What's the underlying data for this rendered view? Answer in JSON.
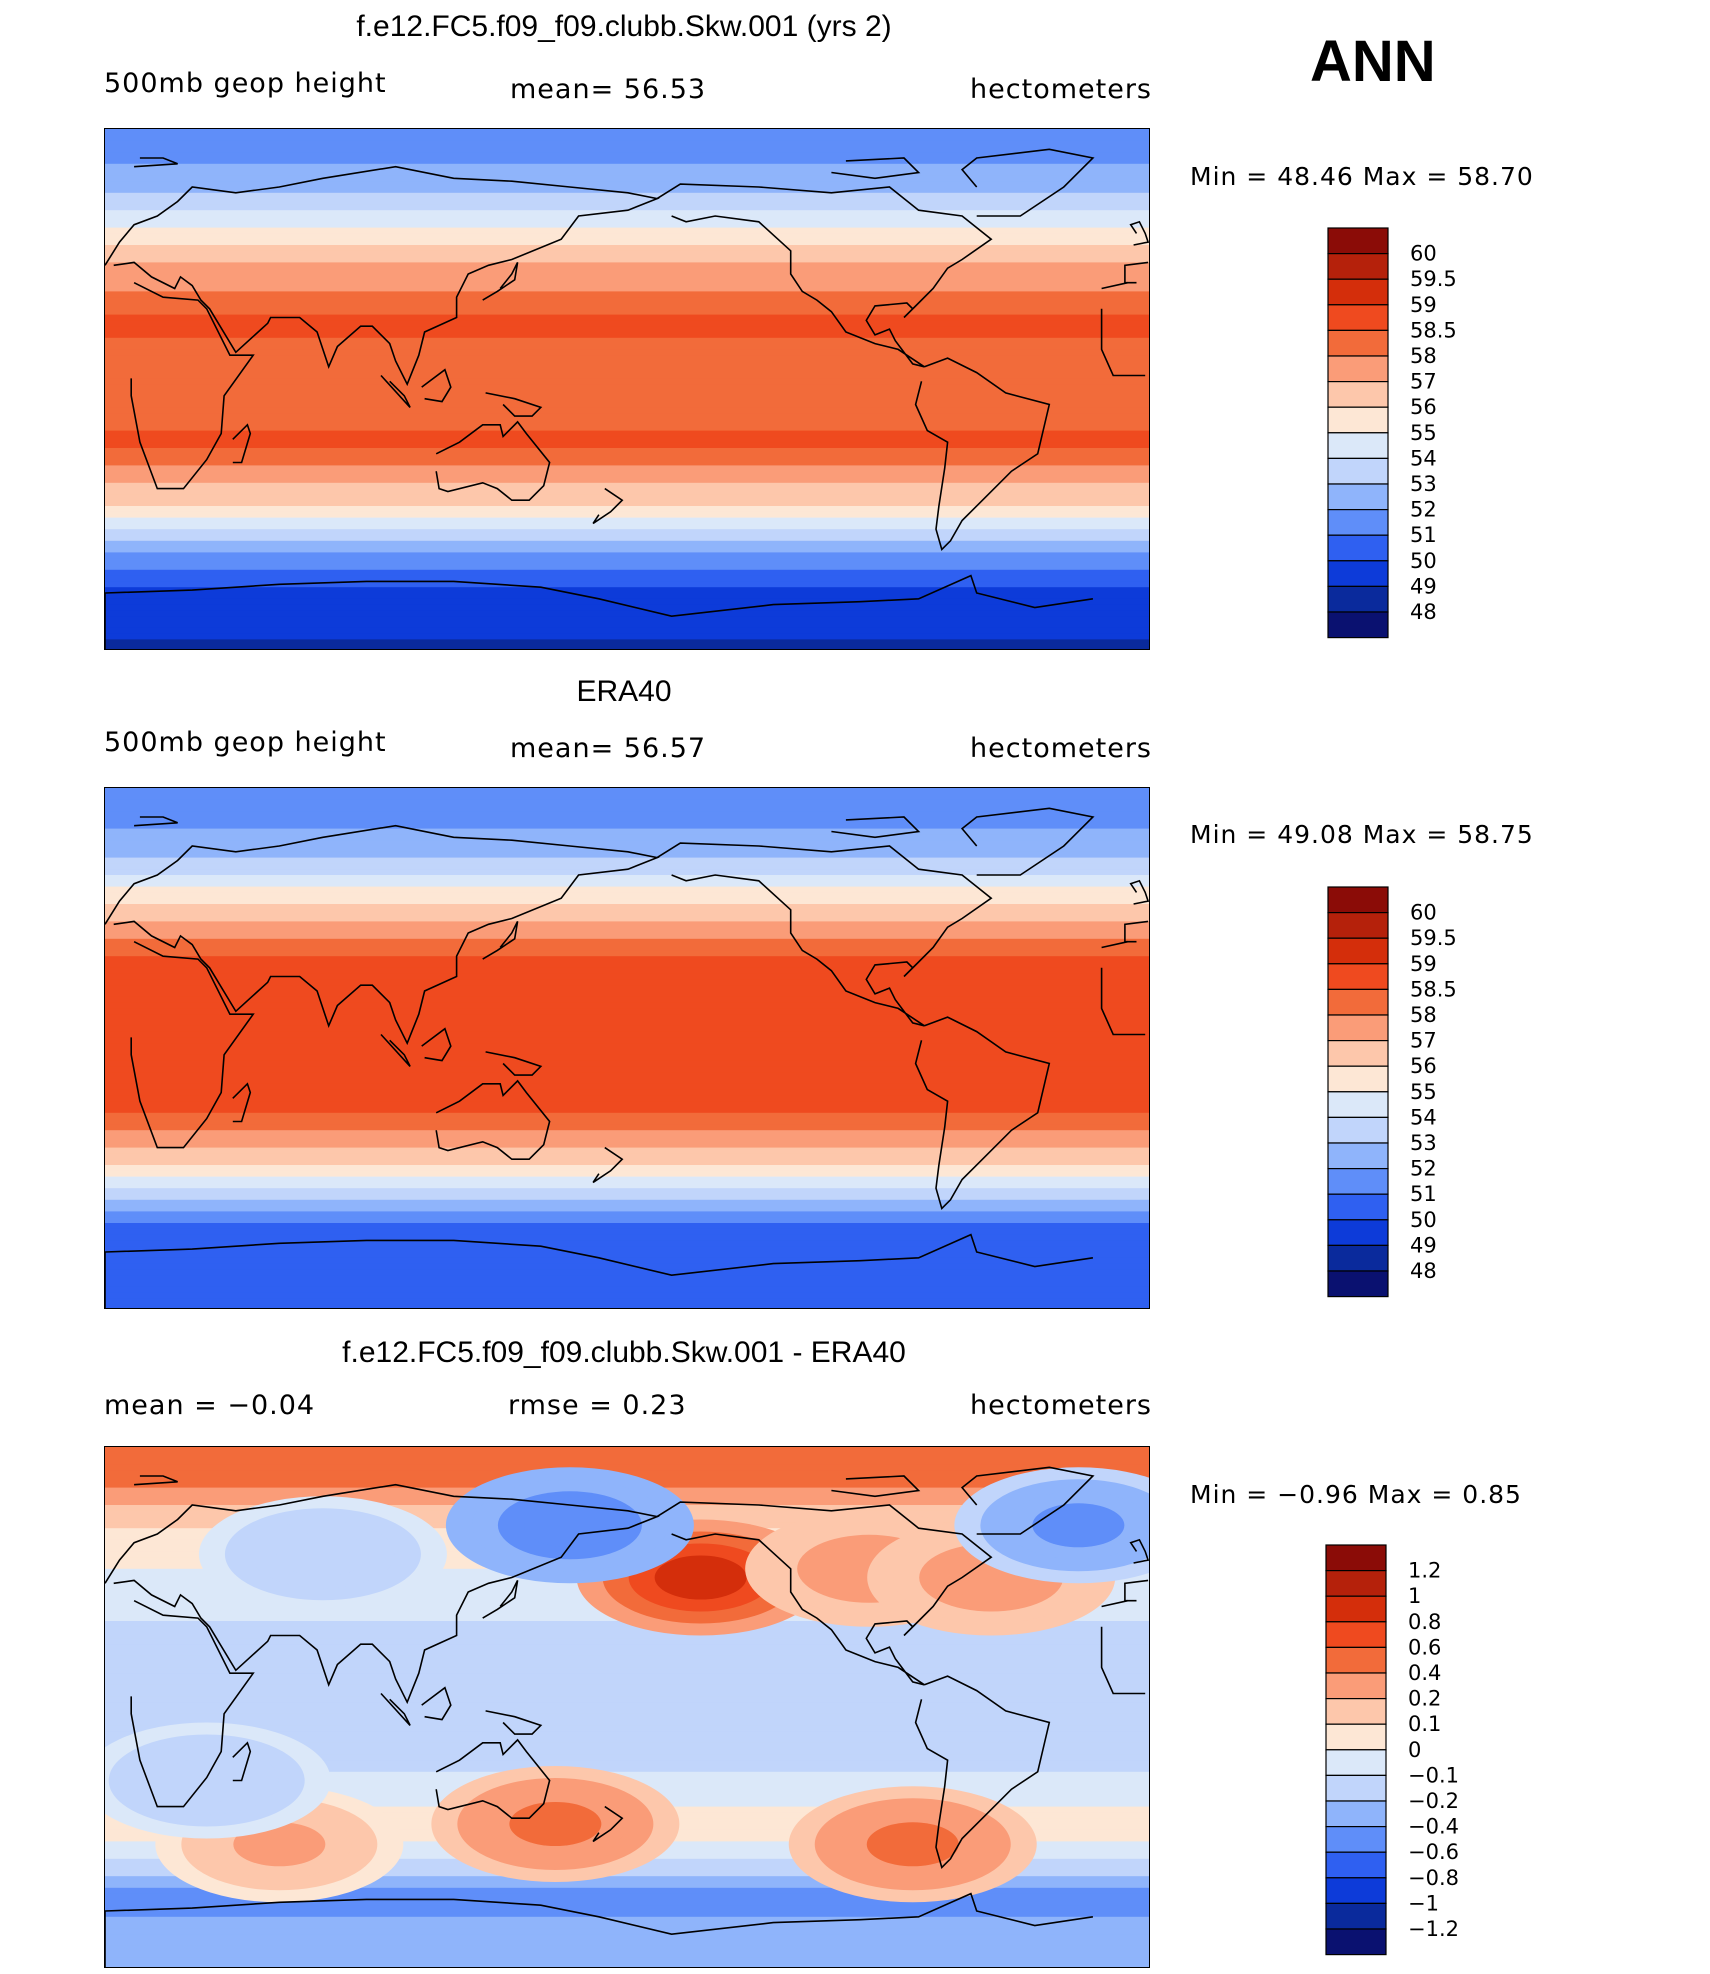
{
  "season": "ANN",
  "panels": [
    {
      "title": "f.e12.FC5.f09_f09.clubb.Skw.001 (yrs 2)",
      "left_label": "500mb geop height",
      "center_label": "mean=  56.53",
      "units": "hectometers",
      "minmax": "Min =   48.46  Max =   58.70",
      "levels": [
        "60",
        "59.5",
        "59",
        "58.5",
        "58",
        "57",
        "56",
        "55",
        "54",
        "53",
        "52",
        "51",
        "50",
        "49",
        "48"
      ],
      "bands": [
        {
          "lat": 90,
          "value": 51.2
        },
        {
          "lat": 80,
          "value": 51.8
        },
        {
          "lat": 70,
          "value": 52.6
        },
        {
          "lat": 60,
          "value": 54.3
        },
        {
          "lat": 52,
          "value": 55.6
        },
        {
          "lat": 42,
          "value": 57.2
        },
        {
          "lat": 32,
          "value": 58.3
        },
        {
          "lat": 22,
          "value": 58.6
        },
        {
          "lat": 10,
          "value": 58.2
        },
        {
          "lat": 0,
          "value": 58.2
        },
        {
          "lat": -10,
          "value": 58.4
        },
        {
          "lat": -20,
          "value": 58.6
        },
        {
          "lat": -30,
          "value": 57.4
        },
        {
          "lat": -38,
          "value": 56.3
        },
        {
          "lat": -45,
          "value": 54.8
        },
        {
          "lat": -52,
          "value": 53.2
        },
        {
          "lat": -58,
          "value": 51.6
        },
        {
          "lat": -64,
          "value": 50.4
        },
        {
          "lat": -72,
          "value": 49.6
        },
        {
          "lat": -82,
          "value": 49.2
        },
        {
          "lat": -90,
          "value": 48.8
        }
      ]
    },
    {
      "title": "ERA40",
      "left_label": "500mb geop height",
      "center_label": "mean=  56.57",
      "units": "hectometers",
      "minmax": "Min =   49.08  Max =   58.75",
      "levels": [
        "60",
        "59.5",
        "59",
        "58.5",
        "58",
        "57",
        "56",
        "55",
        "54",
        "53",
        "52",
        "51",
        "50",
        "49",
        "48"
      ],
      "bands": [
        {
          "lat": 90,
          "value": 51.1
        },
        {
          "lat": 80,
          "value": 51.6
        },
        {
          "lat": 70,
          "value": 52.4
        },
        {
          "lat": 60,
          "value": 54.0
        },
        {
          "lat": 52,
          "value": 55.6
        },
        {
          "lat": 42,
          "value": 57.4
        },
        {
          "lat": 32,
          "value": 58.6
        },
        {
          "lat": 20,
          "value": 58.7
        },
        {
          "lat": 0,
          "value": 58.7
        },
        {
          "lat": -20,
          "value": 58.7
        },
        {
          "lat": -30,
          "value": 57.8
        },
        {
          "lat": -38,
          "value": 56.4
        },
        {
          "lat": -45,
          "value": 54.6
        },
        {
          "lat": -52,
          "value": 52.8
        },
        {
          "lat": -58,
          "value": 51.2
        },
        {
          "lat": -65,
          "value": 50.1
        },
        {
          "lat": -75,
          "value": 50.0
        },
        {
          "lat": -90,
          "value": 50.4
        }
      ]
    },
    {
      "title": "f.e12.FC5.f09_f09.clubb.Skw.001 - ERA40",
      "left_label": "mean =   −0.04",
      "center_label": "rmse =    0.23",
      "units": "hectometers",
      "minmax": "Min =   −0.96  Max =    0.85",
      "levels": [
        "1.2",
        "1",
        "0.8",
        "0.6",
        "0.4",
        "0.2",
        "0.1",
        "0",
        "−0.1",
        "−0.2",
        "−0.4",
        "−0.6",
        "−0.8",
        "−1",
        "−1.2"
      ],
      "bands": [
        {
          "lat": 90,
          "value": 0.5
        },
        {
          "lat": 78,
          "value": 0.45
        },
        {
          "lat": 68,
          "value": 0.15
        },
        {
          "lat": 55,
          "value": 0.05
        },
        {
          "lat": 40,
          "value": -0.05
        },
        {
          "lat": 25,
          "value": -0.12
        },
        {
          "lat": 10,
          "value": -0.15
        },
        {
          "lat": -5,
          "value": -0.18
        },
        {
          "lat": -20,
          "value": -0.12
        },
        {
          "lat": -30,
          "value": -0.05
        },
        {
          "lat": -40,
          "value": 0.05
        },
        {
          "lat": -50,
          "value": -0.05
        },
        {
          "lat": -58,
          "value": -0.2
        },
        {
          "lat": -65,
          "value": -0.5
        },
        {
          "lat": -75,
          "value": -0.35
        },
        {
          "lat": -90,
          "value": -0.3
        }
      ],
      "anomalies": [
        {
          "lon": 205,
          "lat": 45,
          "value": 0.85
        },
        {
          "lon": 160,
          "lat": 63,
          "value": -0.6
        },
        {
          "lon": 278,
          "lat": -47,
          "value": 0.5
        },
        {
          "lon": 155,
          "lat": -40,
          "value": 0.4
        },
        {
          "lon": 263,
          "lat": 48,
          "value": 0.3
        },
        {
          "lon": 305,
          "lat": 45,
          "value": 0.3
        },
        {
          "lon": 75,
          "lat": 53,
          "value": -0.2
        },
        {
          "lon": 335,
          "lat": 63,
          "value": -0.5
        },
        {
          "lon": 60,
          "lat": -47,
          "value": 0.2
        },
        {
          "lon": 35,
          "lat": -25,
          "value": -0.2
        }
      ]
    }
  ],
  "colors": {
    "p1p2_palette": [
      "#8b0c07",
      "#b5210b",
      "#d42e0b",
      "#ef4a1f",
      "#f26b3a",
      "#fa9c78",
      "#fdc7ab",
      "#fde7d5",
      "#dbe8f9",
      "#c1d5fb",
      "#8fb4fb",
      "#5f8ef9",
      "#2f60f1",
      "#0d3bd9",
      "#0a2a9c",
      "#0a1170"
    ],
    "diff_palette": [
      "#8b0c07",
      "#b5210b",
      "#d42e0b",
      "#ef4a1f",
      "#f26b3a",
      "#fa9c78",
      "#fdc7ab",
      "#fde7d5",
      "#dbe8f9",
      "#c1d5fb",
      "#8fb4fb",
      "#5f8ef9",
      "#2f60f1",
      "#0d3bd9",
      "#0a2a9c",
      "#0a1170"
    ]
  }
}
